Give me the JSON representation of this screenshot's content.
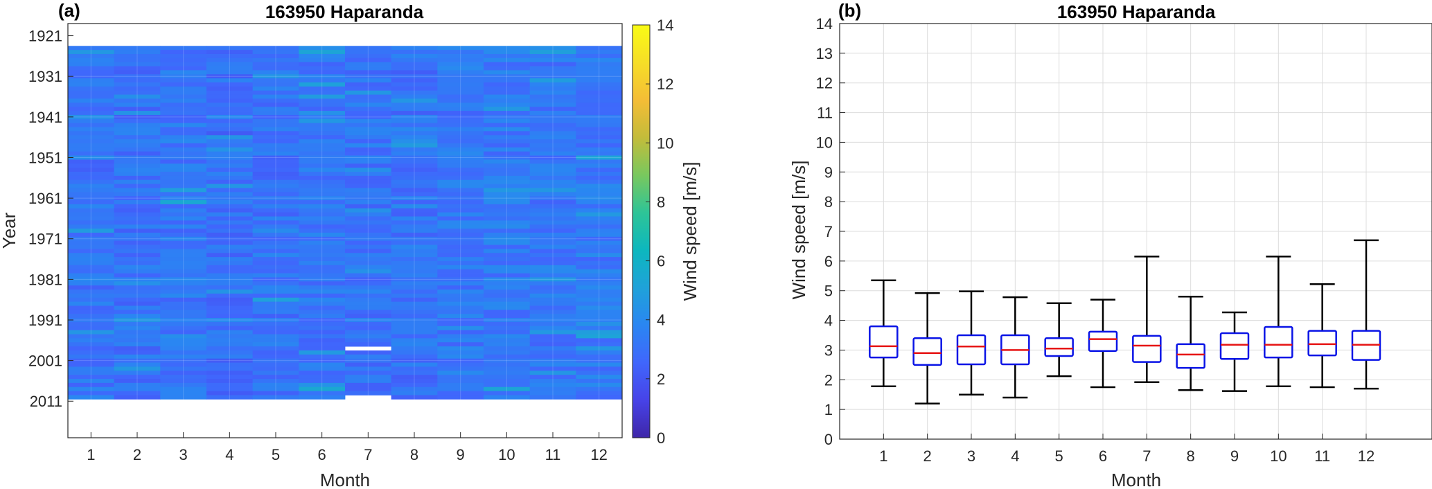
{
  "colors": {
    "axis": "#262626",
    "grid": "#dcdcdc",
    "box_edge": "#0a14e6",
    "median": "#e61414",
    "whisker": "#000000",
    "colormap": [
      "#3e26a8",
      "#4743e8",
      "#4066fc",
      "#2a86f2",
      "#1fa2d9",
      "#0db7be",
      "#2ec497",
      "#79c85e",
      "#c3bc3a",
      "#f4bd36",
      "#f6de27",
      "#f9fb15"
    ]
  },
  "chart_data": [
    {
      "type": "heatmap",
      "panel_tag": "(a)",
      "title": "163950 Haparanda",
      "xlabel": "Month",
      "ylabel": "Year",
      "x_categories": [
        "1",
        "2",
        "3",
        "4",
        "5",
        "6",
        "7",
        "8",
        "9",
        "10",
        "11",
        "12"
      ],
      "y_ticks": [
        "1921",
        "1931",
        "1941",
        "1951",
        "1961",
        "1971",
        "1981",
        "1991",
        "2001",
        "2011"
      ],
      "year_range": [
        1924,
        2010
      ],
      "colorbar": {
        "label": "Wind speed [m/s]",
        "range": [
          0,
          14
        ],
        "ticks": [
          "0",
          "2",
          "4",
          "6",
          "8",
          "10",
          "12",
          "14"
        ]
      },
      "monthly_mean_speed": [
        3.1,
        3.0,
        3.2,
        2.9,
        3.1,
        3.2,
        3.1,
        3.0,
        3.2,
        3.3,
        3.2,
        3.3
      ],
      "missing": [
        {
          "month": 7,
          "year": 1998
        },
        {
          "month": 7,
          "year": 2010
        }
      ],
      "grid": true
    },
    {
      "type": "box",
      "panel_tag": "(b)",
      "title": "163950 Haparanda",
      "xlabel": "Month",
      "ylabel": "Wind speed [m/s]",
      "categories": [
        "1",
        "2",
        "3",
        "4",
        "5",
        "6",
        "7",
        "8",
        "9",
        "10",
        "11",
        "12"
      ],
      "ylim": [
        0,
        14
      ],
      "y_ticks": [
        "0",
        "1",
        "2",
        "3",
        "4",
        "5",
        "6",
        "7",
        "8",
        "9",
        "10",
        "11",
        "12",
        "13",
        "14"
      ],
      "grid": true,
      "boxes": [
        {
          "month": "1",
          "min": 1.78,
          "q1": 2.75,
          "median": 3.13,
          "q3": 3.8,
          "max": 5.35
        },
        {
          "month": "2",
          "min": 1.2,
          "q1": 2.5,
          "median": 2.9,
          "q3": 3.4,
          "max": 4.92
        },
        {
          "month": "3",
          "min": 1.5,
          "q1": 2.52,
          "median": 3.12,
          "q3": 3.5,
          "max": 4.98
        },
        {
          "month": "4",
          "min": 1.4,
          "q1": 2.52,
          "median": 3.0,
          "q3": 3.5,
          "max": 4.78
        },
        {
          "month": "5",
          "min": 2.12,
          "q1": 2.8,
          "median": 3.05,
          "q3": 3.4,
          "max": 4.58
        },
        {
          "month": "6",
          "min": 1.75,
          "q1": 2.97,
          "median": 3.37,
          "q3": 3.62,
          "max": 4.7
        },
        {
          "month": "7",
          "min": 1.92,
          "q1": 2.6,
          "median": 3.15,
          "q3": 3.48,
          "max": 6.15
        },
        {
          "month": "8",
          "min": 1.65,
          "q1": 2.4,
          "median": 2.85,
          "q3": 3.2,
          "max": 4.8
        },
        {
          "month": "9",
          "min": 1.62,
          "q1": 2.7,
          "median": 3.18,
          "q3": 3.57,
          "max": 4.27
        },
        {
          "month": "10",
          "min": 1.78,
          "q1": 2.75,
          "median": 3.18,
          "q3": 3.78,
          "max": 6.15
        },
        {
          "month": "11",
          "min": 1.75,
          "q1": 2.82,
          "median": 3.2,
          "q3": 3.65,
          "max": 5.22
        },
        {
          "month": "12",
          "min": 1.7,
          "q1": 2.67,
          "median": 3.18,
          "q3": 3.65,
          "max": 6.7
        }
      ]
    }
  ]
}
